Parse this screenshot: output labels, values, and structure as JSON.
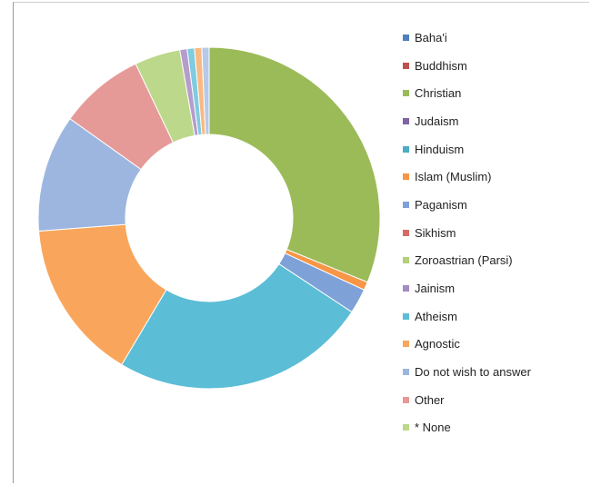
{
  "chart_data": {
    "type": "pie",
    "donut": true,
    "title": "",
    "legend_position": "right",
    "slices": [
      {
        "label": "Baha'i",
        "value": 0,
        "color": "#4f81bd"
      },
      {
        "label": "Buddhism",
        "value": 0,
        "color": "#c0504d"
      },
      {
        "label": "Christian",
        "value": 31.7,
        "color": "#9bbb59"
      },
      {
        "label": "Judaism",
        "value": 0,
        "color": "#8064a2"
      },
      {
        "label": "Hinduism",
        "value": 0,
        "color": "#4bacc6"
      },
      {
        "label": "Islam (Muslim)",
        "value": 0.8,
        "color": "#f79646"
      },
      {
        "label": "Paganism",
        "value": 2.4,
        "color": "#7ea1d8"
      },
      {
        "label": "Sikhism",
        "value": 0,
        "color": "#d86b68"
      },
      {
        "label": "Zoroastrian (Parsi)",
        "value": 0,
        "color": "#b3cf78"
      },
      {
        "label": "Jainism",
        "value": 0,
        "color": "#a58cc0"
      },
      {
        "label": "Atheism",
        "value": 24.7,
        "color": "#5bbdd6"
      },
      {
        "label": "Agnostic",
        "value": 15.5,
        "color": "#f9a65c"
      },
      {
        "label": "Do not wish to answer",
        "value": 11.3,
        "color": "#9db6e0"
      },
      {
        "label": "Other",
        "value": 8.2,
        "color": "#e69a98"
      },
      {
        "label": "*  None",
        "value": 4.4,
        "color": "#bcd88a"
      },
      {
        "label": "",
        "value": 0.7,
        "color": "#b69ccc"
      },
      {
        "label": "",
        "value": 0.7,
        "color": "#7fcbe0"
      },
      {
        "label": "",
        "value": 0.7,
        "color": "#f9b983"
      },
      {
        "label": "",
        "value": 0.7,
        "color": "#b7c9e8"
      }
    ]
  }
}
